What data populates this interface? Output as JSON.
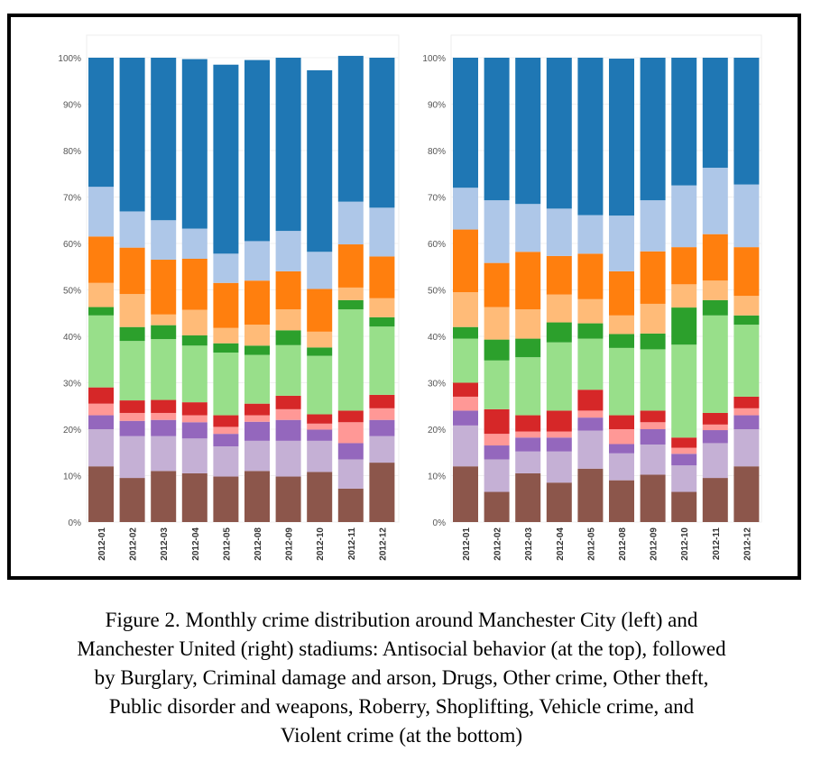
{
  "caption": {
    "line1": "Figure 2.  Monthly crime distribution around Manchester City (left) and",
    "line2": "Manchester United (right) stadiums: Antisocial behavior (at the top), followed",
    "line3": "by Burglary, Criminal damage and arson, Drugs, Other crime, Other theft,",
    "line4": "Public disorder and weapons, Roberry, Shoplifting, Vehicle crime, and",
    "line5": "Violent crime (at the bottom)"
  },
  "chart_data": [
    {
      "type": "bar",
      "stacked": true,
      "ylim": [
        0,
        100
      ],
      "yticks": [
        "0%",
        "10%",
        "20%",
        "30%",
        "40%",
        "50%",
        "60%",
        "70%",
        "80%",
        "90%",
        "100%"
      ],
      "categories": [
        "2012-01",
        "2012-02",
        "2012-03",
        "2012-04",
        "2012-05",
        "2012-08",
        "2012-09",
        "2012-10",
        "2012-11",
        "2012-12"
      ],
      "series_order": "bottom-to-top",
      "series": [
        {
          "color": "#8c564b",
          "values": [
            12,
            9.5,
            11,
            10.5,
            9.8,
            11,
            9.8,
            10.8,
            7.2,
            12.8
          ]
        },
        {
          "color": "#c5b0d5",
          "values": [
            8,
            9,
            7.5,
            7.5,
            6.5,
            6.5,
            7.7,
            6.7,
            6.3,
            5.7
          ]
        },
        {
          "color": "#9467bd",
          "values": [
            3,
            3.3,
            3.5,
            3.5,
            2.7,
            4.1,
            4.5,
            2.4,
            3.5,
            3.5
          ]
        },
        {
          "color": "#ff9896",
          "values": [
            2.5,
            1.7,
            1.5,
            1.5,
            1.5,
            1.4,
            2.3,
            1.3,
            4.5,
            2.5
          ]
        },
        {
          "color": "#d62728",
          "values": [
            3.5,
            2.7,
            2.8,
            2.8,
            2.5,
            2.5,
            2.9,
            2,
            2.5,
            2.9
          ]
        },
        {
          "color": "#98df8a",
          "values": [
            15.5,
            12.8,
            13.1,
            12.2,
            13.5,
            10.5,
            10.9,
            12.6,
            21.8,
            14.7
          ]
        },
        {
          "color": "#2ca02c",
          "values": [
            1.8,
            3,
            3,
            2.2,
            2,
            2,
            3.2,
            1.8,
            2,
            2
          ]
        },
        {
          "color": "#ffbb78",
          "values": [
            5.2,
            7.1,
            2.3,
            5.5,
            3.3,
            4.5,
            4.5,
            3.4,
            2.7,
            4.1
          ]
        },
        {
          "color": "#ff7f0e",
          "values": [
            10,
            10,
            11.8,
            11,
            9.7,
            9.5,
            8.2,
            9.2,
            9.3,
            9
          ]
        },
        {
          "color": "#aec7e8",
          "values": [
            10.7,
            7.8,
            8.5,
            6.5,
            6.3,
            8.5,
            8.7,
            8,
            9.2,
            10.5
          ]
        },
        {
          "color": "#1f77b4",
          "values": [
            27.8,
            33.1,
            35,
            36.5,
            40.7,
            39,
            37.3,
            39.1,
            31.4,
            32.3
          ]
        }
      ]
    },
    {
      "type": "bar",
      "stacked": true,
      "ylim": [
        0,
        100
      ],
      "yticks": [
        "0%",
        "10%",
        "20%",
        "30%",
        "40%",
        "50%",
        "60%",
        "70%",
        "80%",
        "90%",
        "100%"
      ],
      "categories": [
        "2012-01",
        "2012-02",
        "2012-03",
        "2012-04",
        "2012-05",
        "2012-08",
        "2012-09",
        "2012-10",
        "2012-11",
        "2012-12"
      ],
      "series_order": "bottom-to-top",
      "series": [
        {
          "color": "#8c564b",
          "values": [
            12,
            6.5,
            10.5,
            8.5,
            11.5,
            9,
            10.2,
            6.5,
            9.5,
            12
          ]
        },
        {
          "color": "#c5b0d5",
          "values": [
            8.8,
            7,
            4.7,
            6.7,
            8.2,
            5.8,
            6.5,
            5.7,
            7.5,
            8
          ]
        },
        {
          "color": "#9467bd",
          "values": [
            3.2,
            3,
            3,
            3,
            2.8,
            2,
            3.3,
            2.5,
            2.8,
            3
          ]
        },
        {
          "color": "#ff9896",
          "values": [
            3,
            2.5,
            1.3,
            1.3,
            1.5,
            3.2,
            1.5,
            1.3,
            1.2,
            1.5
          ]
        },
        {
          "color": "#d62728",
          "values": [
            3,
            5.3,
            3.5,
            4.5,
            4.5,
            3,
            2.5,
            2.2,
            2.5,
            2.5
          ]
        },
        {
          "color": "#98df8a",
          "values": [
            9.5,
            10.5,
            12.5,
            14.7,
            11,
            14.5,
            13.2,
            20,
            21,
            15.5
          ]
        },
        {
          "color": "#2ca02c",
          "values": [
            2.5,
            4.5,
            4,
            4.3,
            3.3,
            3,
            3.4,
            8,
            3.3,
            2
          ]
        },
        {
          "color": "#ffbb78",
          "values": [
            7.5,
            7,
            6.3,
            6,
            5.2,
            4,
            6.4,
            5,
            4.2,
            4.2
          ]
        },
        {
          "color": "#ff7f0e",
          "values": [
            13.5,
            9.5,
            12.4,
            8.3,
            9.8,
            9.5,
            11.3,
            8,
            10,
            10.5
          ]
        },
        {
          "color": "#aec7e8",
          "values": [
            9,
            13.5,
            10.3,
            10.2,
            8.3,
            12,
            11,
            13.3,
            14.3,
            13.5
          ]
        },
        {
          "color": "#1f77b4",
          "values": [
            28,
            30.7,
            31.5,
            32.5,
            33.9,
            33.8,
            30.7,
            27.5,
            23.7,
            27.3
          ]
        }
      ]
    }
  ]
}
